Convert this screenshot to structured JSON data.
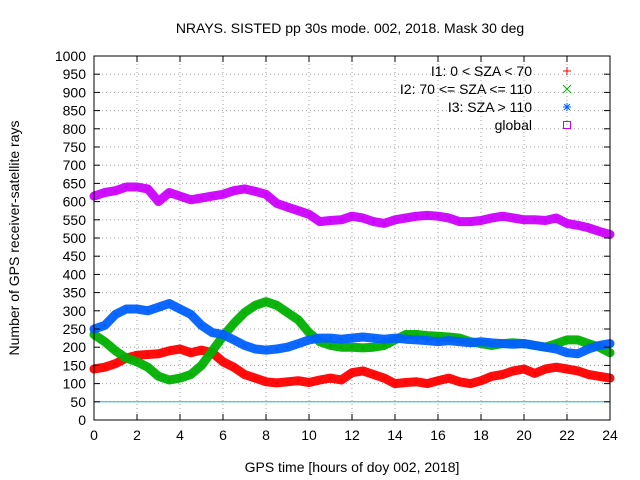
{
  "chart_data": {
    "type": "scatter",
    "title": "NRAYS. SISTED pp 30s mode. 002, 2018. Mask 30 deg",
    "xlabel": "GPS time [hours of doy 002, 2018]",
    "ylabel": "Number of GPS receiver-satellite rays",
    "xlim": [
      0,
      24
    ],
    "ylim": [
      0,
      1000
    ],
    "xticks": [
      "0",
      "2",
      "4",
      "6",
      "8",
      "10",
      "12",
      "14",
      "16",
      "18",
      "20",
      "22",
      "24"
    ],
    "yticks": [
      "0",
      "50",
      "100",
      "150",
      "200",
      "250",
      "300",
      "350",
      "400",
      "450",
      "500",
      "550",
      "600",
      "650",
      "700",
      "750",
      "800",
      "850",
      "900",
      "950",
      "1000"
    ],
    "grid": true,
    "legend_position": "top-right",
    "reference_line": {
      "y": 50,
      "color": "#00c8c8"
    },
    "series": [
      {
        "name": "I1: 0 < SZA < 70",
        "color": "#ff0000",
        "marker": "+",
        "x": [
          0,
          0.5,
          1,
          1.5,
          2,
          2.5,
          3,
          3.5,
          4,
          4.5,
          5,
          5.5,
          6,
          6.5,
          7,
          7.5,
          8,
          8.5,
          9,
          9.5,
          10,
          10.5,
          11,
          11.5,
          12,
          12.5,
          13,
          13.5,
          14,
          14.5,
          15,
          15.5,
          16,
          16.5,
          17,
          17.5,
          18,
          18.5,
          19,
          19.5,
          20,
          20.5,
          21,
          21.5,
          22,
          22.5,
          23,
          23.5,
          24
        ],
        "values": [
          140,
          145,
          155,
          170,
          178,
          180,
          182,
          190,
          195,
          185,
          192,
          185,
          160,
          145,
          125,
          115,
          105,
          102,
          105,
          108,
          103,
          110,
          115,
          110,
          130,
          135,
          125,
          115,
          100,
          103,
          105,
          100,
          108,
          115,
          105,
          100,
          108,
          120,
          125,
          135,
          140,
          128,
          140,
          145,
          140,
          135,
          125,
          120,
          115
        ]
      },
      {
        "name": "I2: 70 <= SZA <= 110",
        "color": "#00b000",
        "marker": "x",
        "x": [
          0,
          0.5,
          1,
          1.5,
          2,
          2.5,
          3,
          3.5,
          4,
          4.5,
          5,
          5.5,
          6,
          6.5,
          7,
          7.5,
          8,
          8.5,
          9,
          9.5,
          10,
          10.5,
          11,
          11.5,
          12,
          12.5,
          13,
          13.5,
          14,
          14.5,
          15,
          15.5,
          16,
          16.5,
          17,
          17.5,
          18,
          18.5,
          19,
          19.5,
          20,
          20.5,
          21,
          21.5,
          22,
          22.5,
          23,
          23.5,
          24
        ],
        "values": [
          235,
          215,
          190,
          170,
          160,
          145,
          120,
          110,
          115,
          125,
          150,
          190,
          230,
          265,
          295,
          315,
          325,
          315,
          295,
          275,
          240,
          215,
          205,
          200,
          200,
          198,
          200,
          205,
          220,
          235,
          235,
          232,
          230,
          228,
          225,
          215,
          210,
          205,
          210,
          212,
          210,
          205,
          200,
          210,
          220,
          220,
          210,
          200,
          185
        ]
      },
      {
        "name": "I3: SZA > 110",
        "color": "#0060ff",
        "marker": "*",
        "x": [
          0,
          0.5,
          1,
          1.5,
          2,
          2.5,
          3,
          3.5,
          4,
          4.5,
          5,
          5.5,
          6,
          6.5,
          7,
          7.5,
          8,
          8.5,
          9,
          9.5,
          10,
          10.5,
          11,
          11.5,
          12,
          12.5,
          13,
          13.5,
          14,
          14.5,
          15,
          15.5,
          16,
          16.5,
          17,
          17.5,
          18,
          18.5,
          19,
          19.5,
          20,
          20.5,
          21,
          21.5,
          22,
          22.5,
          23,
          23.5,
          24
        ],
        "values": [
          250,
          260,
          290,
          305,
          305,
          300,
          310,
          320,
          305,
          290,
          260,
          240,
          235,
          220,
          205,
          195,
          192,
          195,
          200,
          210,
          220,
          225,
          225,
          222,
          225,
          228,
          225,
          222,
          225,
          222,
          220,
          218,
          215,
          218,
          215,
          212,
          215,
          212,
          210,
          208,
          210,
          205,
          200,
          195,
          185,
          182,
          195,
          205,
          210
        ]
      },
      {
        "name": "global",
        "color": "#cc00ff",
        "marker": "square",
        "x": [
          0,
          0.5,
          1,
          1.5,
          2,
          2.5,
          3,
          3.5,
          4,
          4.5,
          5,
          5.5,
          6,
          6.5,
          7,
          7.5,
          8,
          8.5,
          9,
          9.5,
          10,
          10.5,
          11,
          11.5,
          12,
          12.5,
          13,
          13.5,
          14,
          14.5,
          15,
          15.5,
          16,
          16.5,
          17,
          17.5,
          18,
          18.5,
          19,
          19.5,
          20,
          20.5,
          21,
          21.5,
          22,
          22.5,
          23,
          23.5,
          24
        ],
        "values": [
          615,
          625,
          630,
          640,
          640,
          635,
          600,
          625,
          615,
          605,
          610,
          615,
          620,
          630,
          635,
          628,
          620,
          595,
          585,
          575,
          565,
          545,
          548,
          550,
          560,
          555,
          545,
          540,
          550,
          555,
          560,
          562,
          560,
          555,
          545,
          545,
          548,
          555,
          560,
          555,
          550,
          550,
          548,
          555,
          540,
          535,
          528,
          518,
          510
        ]
      }
    ]
  }
}
